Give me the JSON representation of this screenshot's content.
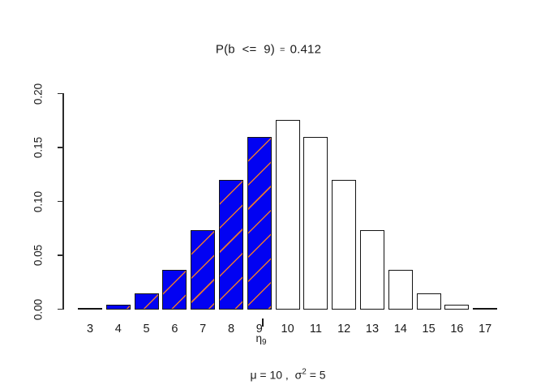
{
  "figure": {
    "title": {
      "prob_expr": "P(b  <=  9)",
      "equals": "=",
      "value": "0.412"
    },
    "subtitle": {
      "mu_part": "μ = 10 ,  ",
      "sigma": "σ",
      "sigma_sup": "2",
      "sigma_rest": " = 5"
    },
    "quantile_marker": {
      "eta": "η",
      "sub": "9"
    }
  },
  "chart_data": {
    "type": "bar",
    "title": "P(b <= 9) = 0.412",
    "note": "μ = 10 , σ² = 5",
    "categories": [
      3,
      4,
      5,
      6,
      7,
      8,
      9,
      10,
      11,
      12,
      13,
      14,
      15,
      16,
      17
    ],
    "values": [
      0.00109,
      0.00462,
      0.01479,
      0.03696,
      0.07393,
      0.12013,
      0.16018,
      0.1762,
      0.16018,
      0.12013,
      0.07393,
      0.03696,
      0.01479,
      0.00462,
      0.00109
    ],
    "highlight_max_category": 9,
    "highlight_fill": "#0202F2",
    "highlight_hatch_color": "#E8772E",
    "normal_fill": "#FFFFFF",
    "bar_border_color": "#141414",
    "xlabel": "",
    "ylabel": "",
    "ylim": [
      0,
      0.2
    ],
    "yticks": [
      "0.00",
      "0.05",
      "0.10",
      "0.15",
      "0.20"
    ],
    "grid": false,
    "legend": null,
    "quantile_marker_at": 9
  }
}
